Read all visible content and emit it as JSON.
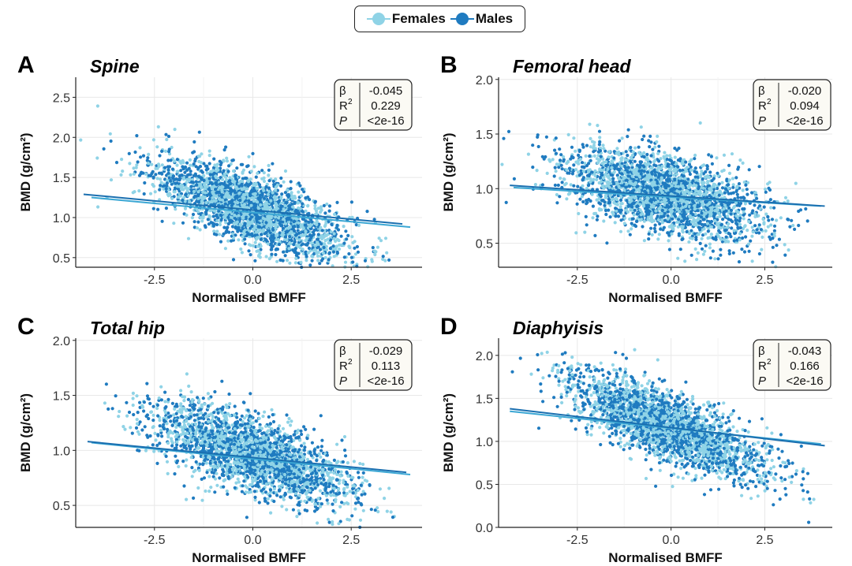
{
  "legend": {
    "items": [
      {
        "label": "Females",
        "color": "#8fd3e6"
      },
      {
        "label": "Males",
        "color": "#1f7bc0"
      }
    ]
  },
  "chart_data": [
    {
      "type": "scatter",
      "panel": "A",
      "title": "Spine",
      "xlabel": "Normalised BMFF",
      "ylabel": "BMD (g/cm²)",
      "xlim": [
        -4.5,
        4.3
      ],
      "ylim": [
        0.38,
        2.75
      ],
      "xticks": [
        -2.5,
        0.0,
        2.5
      ],
      "xtick_labels": [
        "-2.5",
        "0.0",
        "2.5"
      ],
      "yticks": [
        0.5,
        1.0,
        1.5,
        2.0,
        2.5
      ],
      "ytick_labels": [
        "0.5",
        "1.0",
        "1.5",
        "2.0",
        "2.5"
      ],
      "grid": true,
      "series": [
        {
          "name": "Females",
          "color": "#8fd3e6",
          "fit": {
            "x0": -4.1,
            "y0": 1.25,
            "x1": 4.0,
            "y1": 0.88
          }
        },
        {
          "name": "Males",
          "color": "#1f7bc0",
          "fit": {
            "x0": -4.3,
            "y0": 1.29,
            "x1": 3.8,
            "y1": 0.92
          }
        }
      ],
      "cloud": {
        "cx": 0.0,
        "cy": 1.1,
        "sx": 1.25,
        "sy": 0.22,
        "slope": -0.045
      },
      "stats": {
        "beta_symbol": "β",
        "beta": "-0.045",
        "r2_symbol": "R",
        "r2_sup": "2",
        "r2": "0.229",
        "p_symbol": "P",
        "p": "<2e-16"
      }
    },
    {
      "type": "scatter",
      "panel": "B",
      "title": "Femoral head",
      "xlabel": "Normalised BMFF",
      "ylabel": "BMD (g/cm²)",
      "xlim": [
        -4.6,
        4.3
      ],
      "ylim": [
        0.28,
        2.02
      ],
      "xticks": [
        -2.5,
        0.0,
        2.5
      ],
      "xtick_labels": [
        "-2.5",
        "0.0",
        "2.5"
      ],
      "yticks": [
        0.5,
        1.0,
        1.5,
        2.0
      ],
      "ytick_labels": [
        "0.5",
        "1.0",
        "1.5",
        "2.0"
      ],
      "grid": true,
      "series": [
        {
          "name": "Females",
          "color": "#8fd3e6",
          "fit": {
            "x0": -4.2,
            "y0": 1.01,
            "x1": 4.0,
            "y1": 0.84
          }
        },
        {
          "name": "Males",
          "color": "#1f7bc0",
          "fit": {
            "x0": -4.3,
            "y0": 1.03,
            "x1": 4.1,
            "y1": 0.84
          }
        }
      ],
      "cloud": {
        "cx": -0.2,
        "cy": 0.95,
        "sx": 1.3,
        "sy": 0.18,
        "slope": -0.02
      },
      "stats": {
        "beta_symbol": "β",
        "beta": "-0.020",
        "r2_symbol": "R",
        "r2_sup": "2",
        "r2": "0.094",
        "p_symbol": "P",
        "p": "<2e-16"
      }
    },
    {
      "type": "scatter",
      "panel": "C",
      "title": "Total hip",
      "xlabel": "Normalised BMFF",
      "ylabel": "BMD (g/cm²)",
      "xlim": [
        -4.5,
        4.3
      ],
      "ylim": [
        0.3,
        2.02
      ],
      "xticks": [
        -2.5,
        0.0,
        2.5
      ],
      "xtick_labels": [
        "-2.5",
        "0.0",
        "2.5"
      ],
      "yticks": [
        0.5,
        1.0,
        1.5,
        2.0
      ],
      "ytick_labels": [
        "0.5",
        "1.0",
        "1.5",
        "2.0"
      ],
      "grid": true,
      "series": [
        {
          "name": "Females",
          "color": "#8fd3e6",
          "fit": {
            "x0": -4.1,
            "y0": 1.07,
            "x1": 4.0,
            "y1": 0.78
          }
        },
        {
          "name": "Males",
          "color": "#1f7bc0",
          "fit": {
            "x0": -4.2,
            "y0": 1.08,
            "x1": 3.9,
            "y1": 0.8
          }
        }
      ],
      "cloud": {
        "cx": 0.0,
        "cy": 0.96,
        "sx": 1.25,
        "sy": 0.17,
        "slope": -0.029
      },
      "stats": {
        "beta_symbol": "β",
        "beta": "-0.029",
        "r2_symbol": "R",
        "r2_sup": "2",
        "r2": "0.113",
        "p_symbol": "P",
        "p": "<2e-16"
      }
    },
    {
      "type": "scatter",
      "panel": "D",
      "title": "Diaphyisis",
      "xlabel": "Normalised BMFF",
      "ylabel": "BMD (g/cm²)",
      "xlim": [
        -4.6,
        4.3
      ],
      "ylim": [
        0.0,
        2.2
      ],
      "xticks": [
        -2.5,
        0.0,
        2.5
      ],
      "xtick_labels": [
        "-2.5",
        "0.0",
        "2.5"
      ],
      "yticks": [
        0.0,
        0.5,
        1.0,
        1.5,
        2.0
      ],
      "ytick_labels": [
        "0.0",
        "0.5",
        "1.0",
        "1.5",
        "2.0"
      ],
      "grid": true,
      "series": [
        {
          "name": "Females",
          "color": "#8fd3e6",
          "fit": {
            "x0": -4.3,
            "y0": 1.35,
            "x1": 4.0,
            "y1": 0.97
          }
        },
        {
          "name": "Males",
          "color": "#1f7bc0",
          "fit": {
            "x0": -4.3,
            "y0": 1.38,
            "x1": 4.1,
            "y1": 0.95
          }
        }
      ],
      "cloud": {
        "cx": -0.1,
        "cy": 1.17,
        "sx": 1.3,
        "sy": 0.2,
        "slope": -0.043
      },
      "stats": {
        "beta_symbol": "β",
        "beta": "-0.043",
        "r2_symbol": "R",
        "r2_sup": "2",
        "r2": "0.166",
        "p_symbol": "P",
        "p": "<2e-16"
      }
    }
  ]
}
